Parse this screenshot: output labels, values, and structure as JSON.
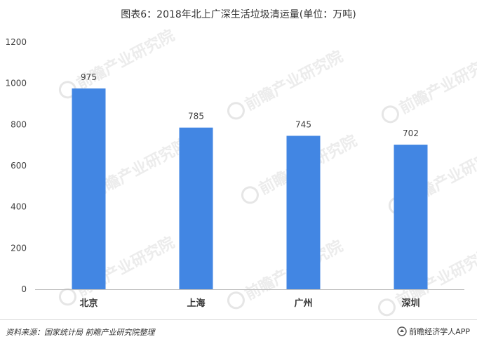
{
  "chart_data": {
    "type": "bar",
    "title": "图表6：2018年北上广深生活垃圾清运量(单位：万吨)",
    "categories": [
      "北京",
      "上海",
      "广州",
      "深圳"
    ],
    "values": [
      975,
      785,
      745,
      702
    ],
    "data_labels": [
      "975",
      "785",
      "745",
      "702"
    ],
    "xlabel": "",
    "ylabel": "",
    "ylim": [
      0,
      1200
    ],
    "yticks": [
      0,
      200,
      400,
      600,
      800,
      1000,
      1200
    ],
    "ytick_labels": [
      "0",
      "200",
      "400",
      "600",
      "800",
      "1000",
      "1200"
    ],
    "grid": false,
    "legend": "none",
    "bar_color": "#4286e3"
  },
  "footer": {
    "source": "资料来源：国家统计局 前瞻产业研究院整理",
    "brand": "前瞻经济学人APP"
  },
  "watermark": "前瞻产业研究院"
}
